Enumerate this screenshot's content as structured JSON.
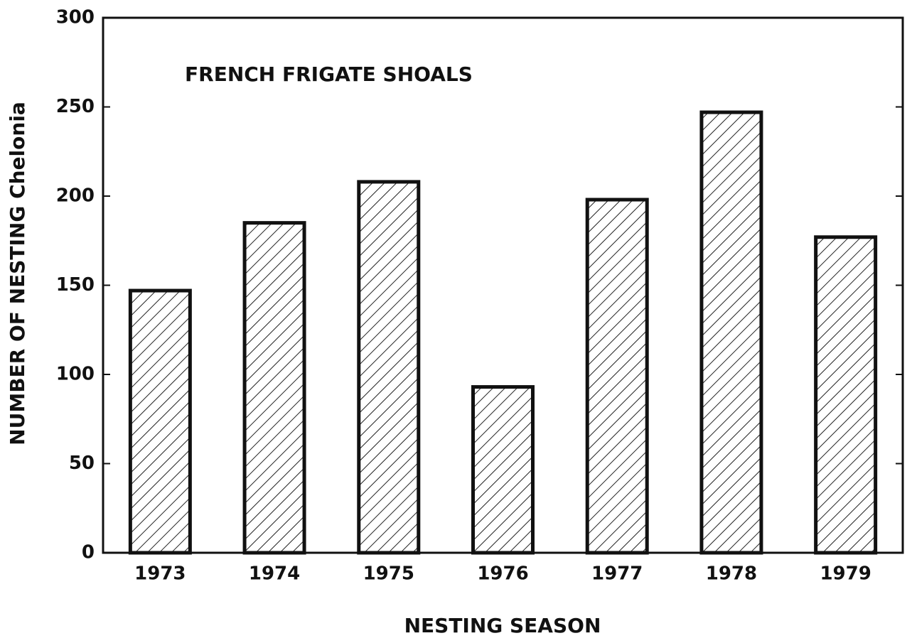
{
  "chart_data": {
    "type": "bar",
    "title": "FRENCH FRIGATE SHOALS",
    "xlabel": "NESTING SEASON",
    "ylabel": "NUMBER OF NESTING Chelonia",
    "categories": [
      "1973",
      "1974",
      "1975",
      "1976",
      "1977",
      "1978",
      "1979"
    ],
    "values": [
      147,
      185,
      208,
      93,
      198,
      247,
      177
    ],
    "color": "#111111",
    "hatch": true,
    "ylim": [
      0,
      300
    ],
    "yticks": [
      0,
      50,
      100,
      150,
      200,
      250,
      300
    ],
    "grid": false
  }
}
